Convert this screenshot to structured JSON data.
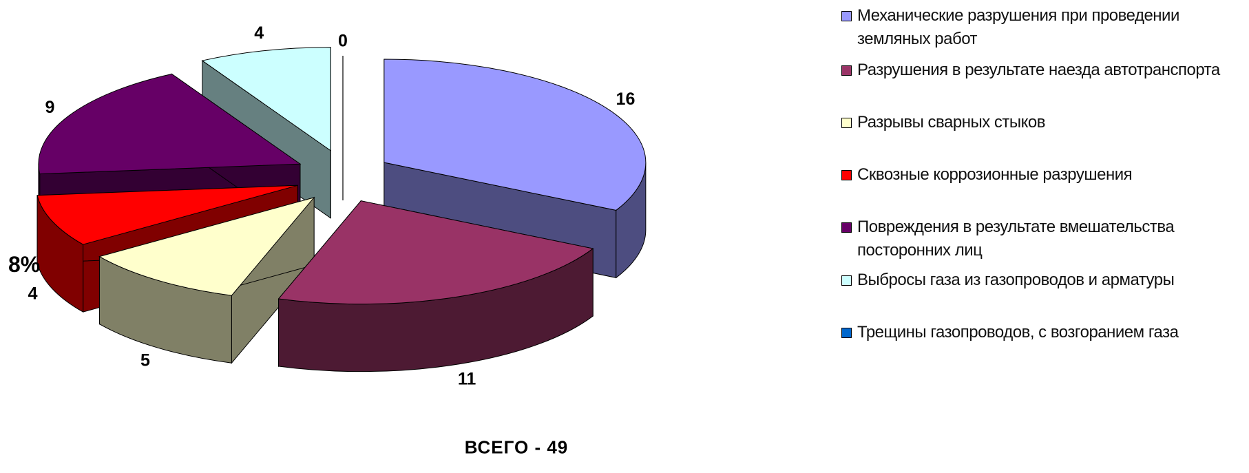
{
  "chart_data": {
    "type": "pie",
    "style": "3d-exploded",
    "total_label": "ВСЕГО - 49",
    "side_label": "8%",
    "slices": [
      {
        "label": "Механические разрушения при проведении земляных работ",
        "value": 16,
        "color": "#9999ff",
        "side_color": "#4d4d80",
        "show_value": "16"
      },
      {
        "label": "Разрушения в результате наезда автотранспорта",
        "value": 11,
        "color": "#993366",
        "side_color": "#4d1a33",
        "show_value": "11"
      },
      {
        "label": "Разрывы сварных стыков",
        "value": 5,
        "color": "#ffffcc",
        "side_color": "#808066",
        "show_value": "5"
      },
      {
        "label": "Сквозные коррозионные разрушения",
        "value": 4,
        "color": "#ff0000",
        "side_color": "#800000",
        "show_value": "4"
      },
      {
        "label": "Повреждения в результате вмешательства посторонних лиц",
        "value": 9,
        "color": "#660066",
        "side_color": "#330033",
        "show_value": "9"
      },
      {
        "label": "Выбросы газа из газопроводов и арматуры",
        "value": 4,
        "color": "#ccffff",
        "side_color": "#668080",
        "show_value": "4"
      },
      {
        "label": "Трещины газопроводов, с возгоранием газа",
        "value": 0,
        "color": "#0066cc",
        "side_color": "#003366",
        "show_value": "0"
      }
    ],
    "legend_position": "right"
  }
}
